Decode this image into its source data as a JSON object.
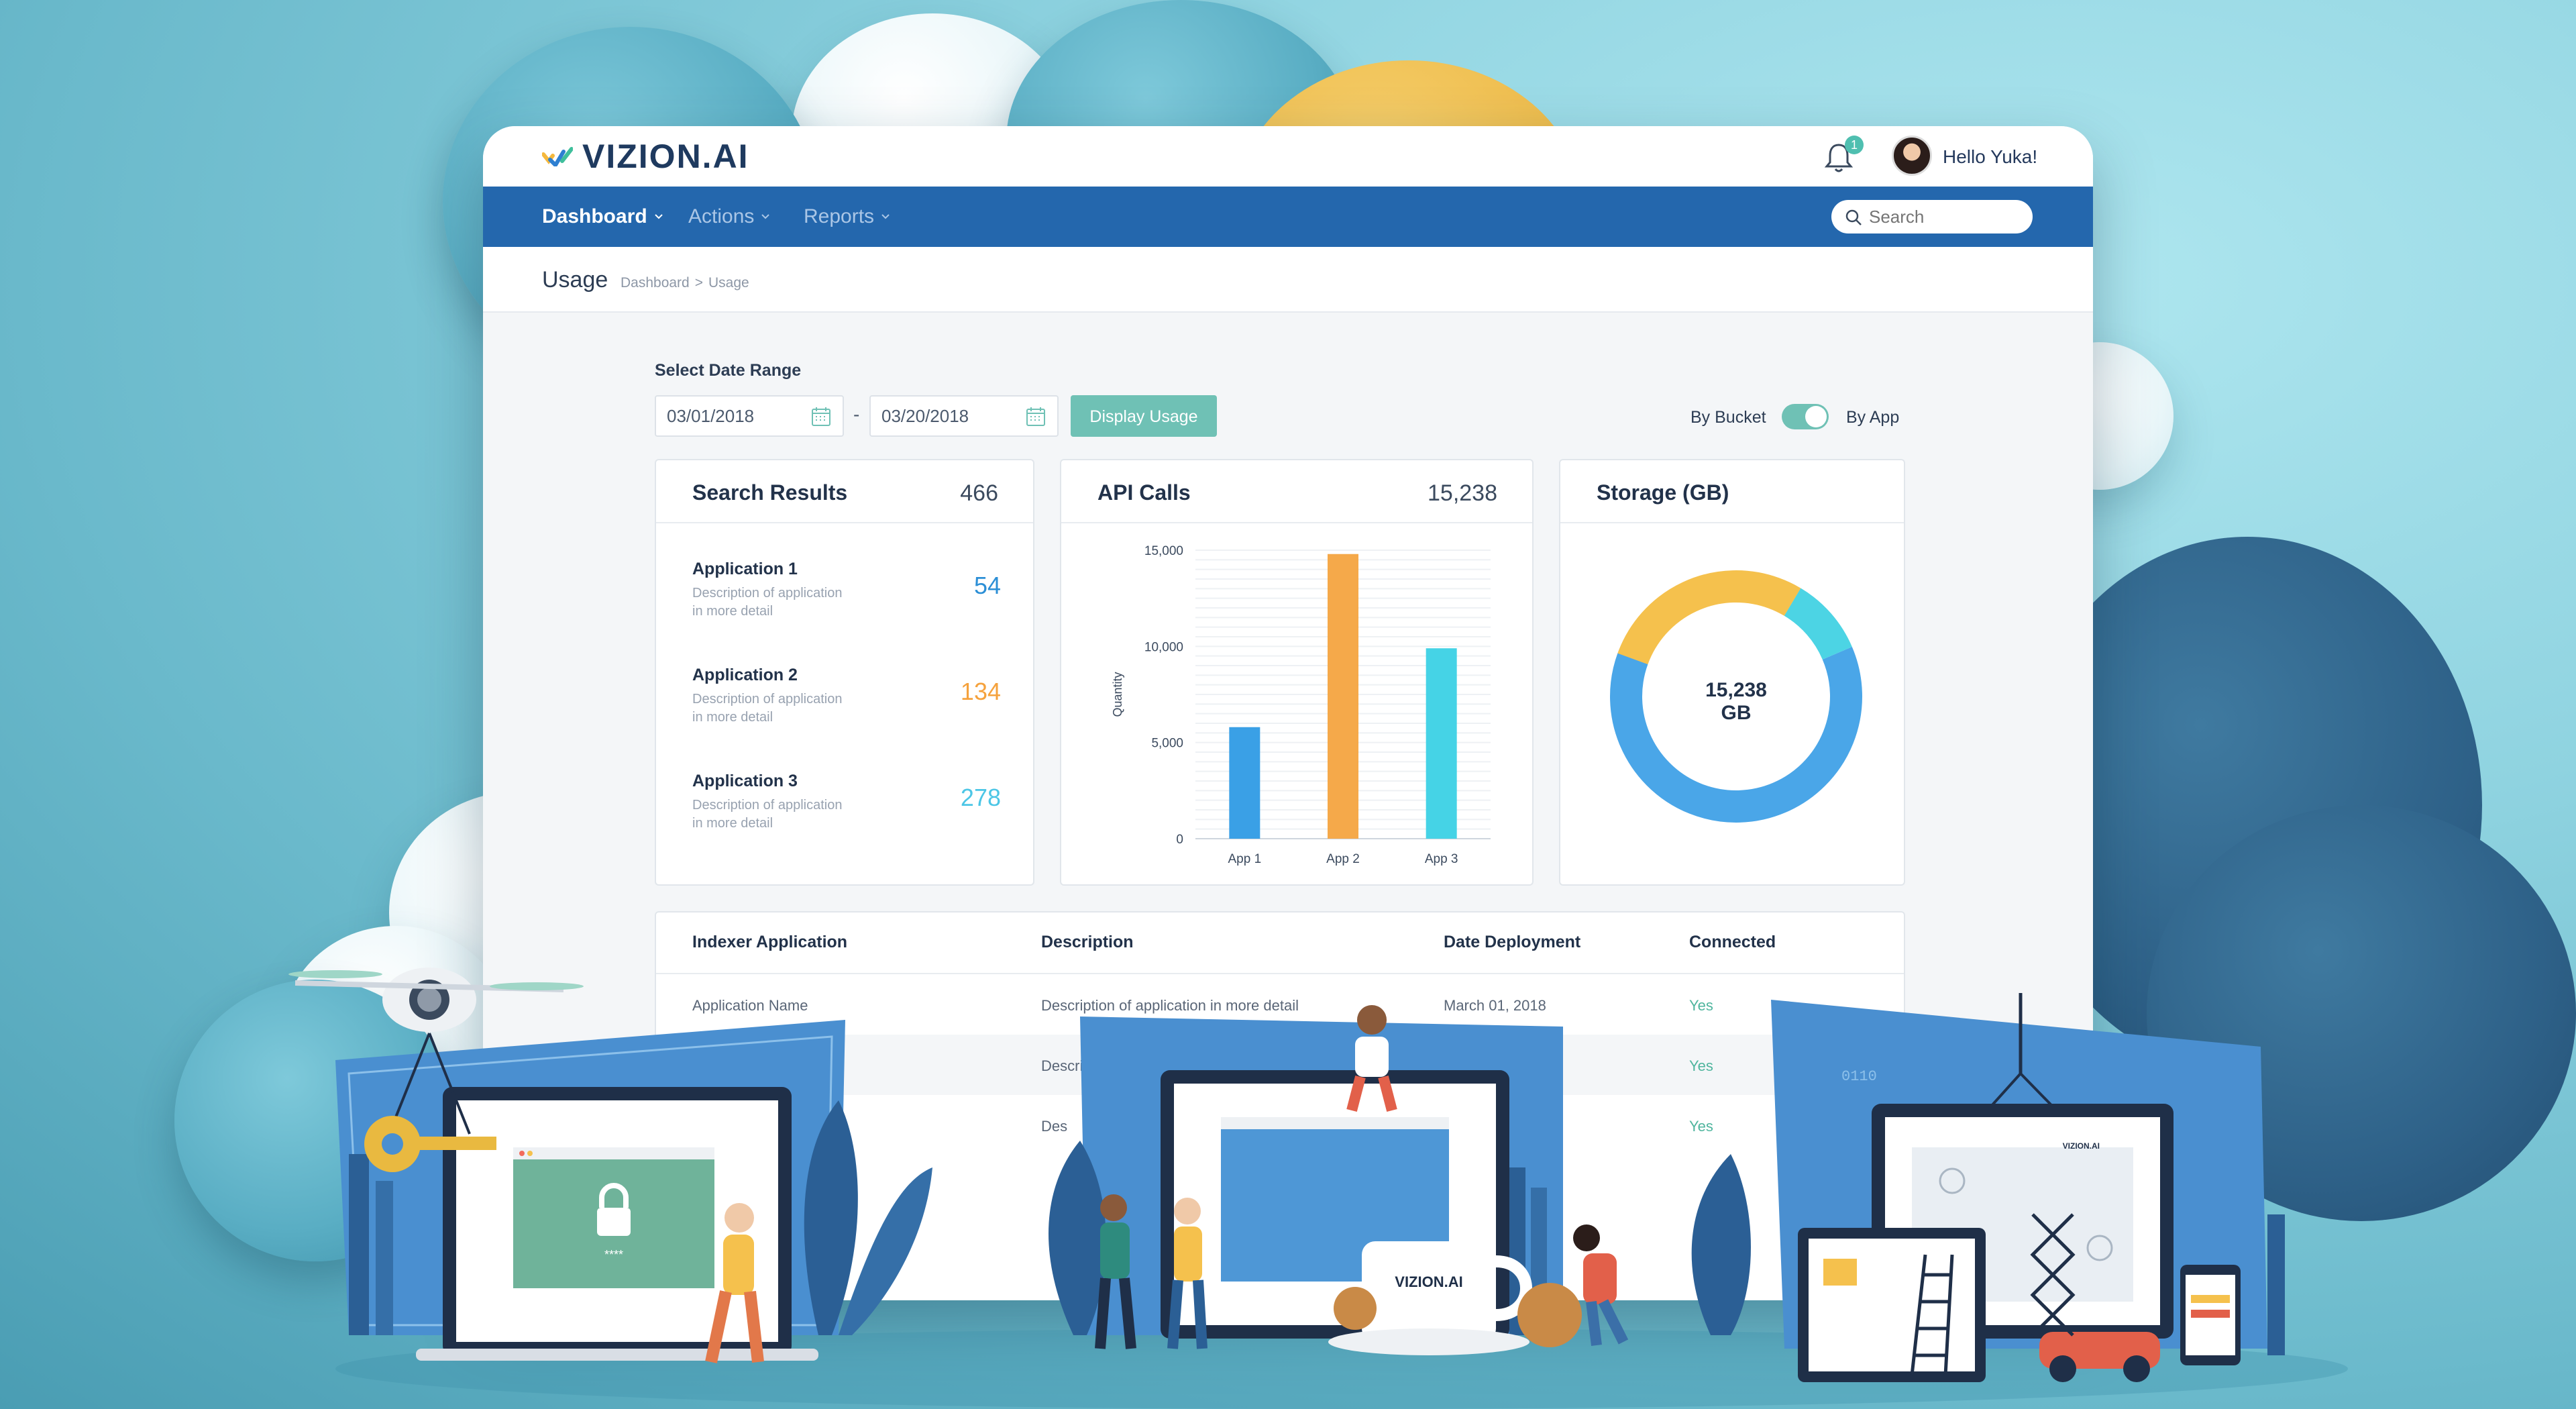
{
  "brand": {
    "name": "VIZION.AI",
    "logo_colors": [
      "#f5b83d",
      "#2e7fd1",
      "#3fbf9b"
    ]
  },
  "header": {
    "notification_count": "1",
    "greeting": "Hello Yuka!"
  },
  "nav": {
    "items": [
      {
        "label": "Dashboard",
        "active": true
      },
      {
        "label": "Actions",
        "active": false
      },
      {
        "label": "Reports",
        "active": false
      }
    ],
    "search_placeholder": "Search"
  },
  "page": {
    "title": "Usage",
    "breadcrumb": [
      "Dashboard",
      ">",
      "Usage"
    ]
  },
  "filters": {
    "range_label": "Select Date Range",
    "start_date": "03/01/2018",
    "separator": "-",
    "end_date": "03/20/2018",
    "display_button": "Display Usage",
    "toggle_left": "By Bucket",
    "toggle_right": "By App",
    "toggle_on": true
  },
  "search_results": {
    "title": "Search Results",
    "total": "466",
    "apps": [
      {
        "name": "Application 1",
        "desc_line1": "Description of application",
        "desc_line2": "in more detail",
        "value": "54",
        "color": "#2c8fd6"
      },
      {
        "name": "Application 2",
        "desc_line1": "Description of application",
        "desc_line2": "in more detail",
        "value": "134",
        "color": "#f5a23d"
      },
      {
        "name": "Application 3",
        "desc_line1": "Description of application",
        "desc_line2": "in more detail",
        "value": "278",
        "color": "#4cc6e6"
      }
    ]
  },
  "api_calls": {
    "title": "API Calls",
    "total": "15,238"
  },
  "storage": {
    "title": "Storage (GB)",
    "center_value": "15,238",
    "center_unit": "GB"
  },
  "chart_data": [
    {
      "type": "bar",
      "title": "",
      "categories": [
        "App 1",
        "App 2",
        "App 3"
      ],
      "values": [
        5800,
        14800,
        9900
      ],
      "colors": [
        "#3aa0e6",
        "#f5a94a",
        "#45d3e6"
      ],
      "xlabel": "",
      "ylabel": "Quantity",
      "ylim": [
        0,
        15000
      ],
      "yticks": [
        "0",
        "5,000",
        "10,000",
        "15,000"
      ],
      "grid": true
    },
    {
      "type": "pie",
      "donut": true,
      "slices": [
        {
          "value": 0.62,
          "color": "#4aa6e8"
        },
        {
          "value": 0.28,
          "color": "#f5c14d"
        },
        {
          "value": 0.1,
          "color": "#4cd4e4"
        }
      ]
    }
  ],
  "table": {
    "headers": [
      "Indexer Application",
      "Description",
      "Date Deployment",
      "Connected"
    ],
    "rows": [
      {
        "app": "Application Name",
        "desc": "Description of application in more detail",
        "date": "March 01, 2018",
        "connected": "Yes"
      },
      {
        "app": "",
        "desc": "Descri",
        "date": "",
        "connected": "Yes"
      },
      {
        "app": "",
        "desc": "Des",
        "date": "",
        "connected": "Yes"
      }
    ]
  },
  "illustration": {
    "lock_code": "****",
    "mug_brand": "VIZION.AI",
    "monitor_brand": "VIZION.AI",
    "binary": "0110"
  }
}
